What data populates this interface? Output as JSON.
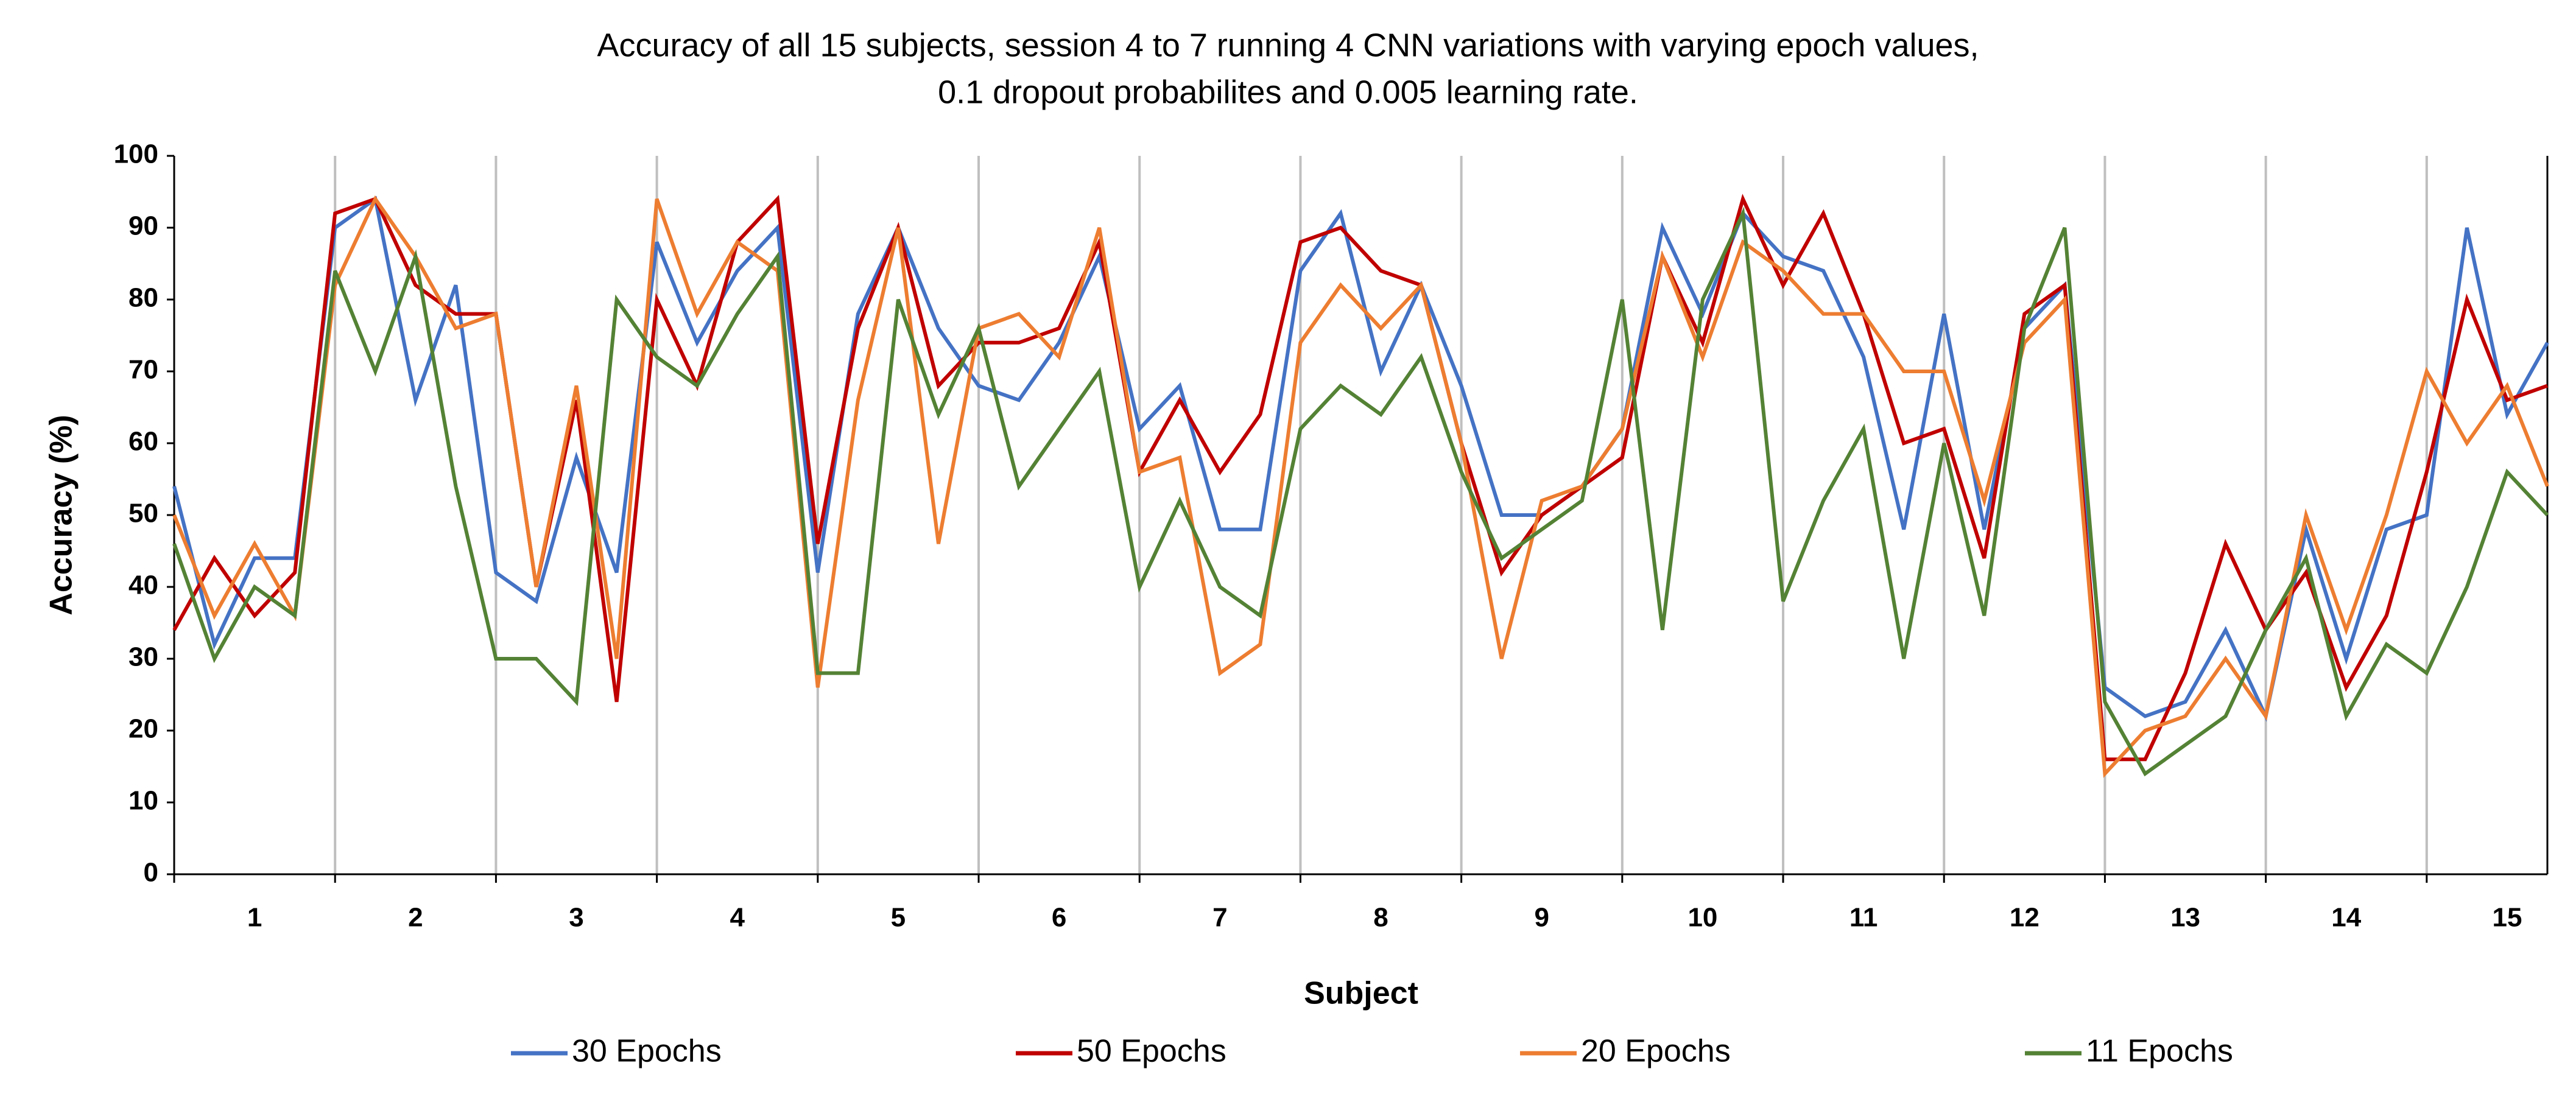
{
  "chart_data": {
    "type": "line",
    "title": [
      "Accuracy of all 15 subjects, session 4 to 7 running 4 CNN variations with varying epoch values,",
      "0.1 dropout probabilites and 0.005 learning rate."
    ],
    "x_label": "Subject",
    "y_label": "Accuracy (%)",
    "categories": [
      "1",
      "2",
      "3",
      "4",
      "5",
      "6",
      "7",
      "8",
      "9",
      "10",
      "11",
      "12",
      "13",
      "14",
      "15"
    ],
    "ylim": [
      0,
      100
    ],
    "yticks": [
      0,
      10,
      20,
      30,
      40,
      50,
      60,
      70,
      80,
      90,
      100
    ],
    "grid": true,
    "legend": "bottom",
    "series": [
      {
        "name": "30 Epochs",
        "color": "#4472c4",
        "values": [
          [
            54,
            32,
            44,
            44
          ],
          [
            90,
            94,
            66,
            82
          ],
          [
            42,
            38,
            58,
            42
          ],
          [
            88,
            74,
            84,
            90
          ],
          [
            42,
            78,
            90,
            76
          ],
          [
            68,
            66,
            74,
            86
          ],
          [
            62,
            68,
            48,
            48
          ],
          [
            84,
            92,
            70,
            82
          ],
          [
            68,
            50,
            50,
            54
          ],
          [
            62,
            90,
            78,
            92
          ],
          [
            86,
            84,
            72,
            48
          ],
          [
            78,
            48,
            76,
            82
          ],
          [
            26,
            22,
            24,
            34
          ],
          [
            22,
            48,
            30,
            48
          ],
          [
            50,
            90,
            64,
            74
          ]
        ]
      },
      {
        "name": "50 Epochs",
        "color": "#c00000",
        "values": [
          [
            34,
            44,
            36,
            42
          ],
          [
            92,
            94,
            82,
            78
          ],
          [
            78,
            40,
            66,
            24
          ],
          [
            80,
            68,
            88,
            94
          ],
          [
            46,
            76,
            90,
            68
          ],
          [
            74,
            74,
            76,
            88
          ],
          [
            56,
            66,
            56,
            64
          ],
          [
            88,
            90,
            84,
            82
          ],
          [
            60,
            42,
            50,
            54
          ],
          [
            58,
            86,
            74,
            94
          ],
          [
            82,
            92,
            78,
            60
          ],
          [
            62,
            44,
            78,
            82
          ],
          [
            16,
            16,
            28,
            46
          ],
          [
            34,
            42,
            26,
            36
          ],
          [
            56,
            80,
            66,
            68
          ]
        ]
      },
      {
        "name": "20 Epochs",
        "color": "#ed7d31",
        "values": [
          [
            50,
            36,
            46,
            36
          ],
          [
            82,
            94,
            86,
            76
          ],
          [
            78,
            40,
            68,
            30
          ],
          [
            94,
            78,
            88,
            84
          ],
          [
            26,
            66,
            90,
            46
          ],
          [
            76,
            78,
            72,
            90
          ],
          [
            56,
            58,
            28,
            32
          ],
          [
            74,
            82,
            76,
            82
          ],
          [
            60,
            30,
            52,
            54
          ],
          [
            62,
            86,
            72,
            88
          ],
          [
            84,
            78,
            78,
            70
          ],
          [
            70,
            52,
            74,
            80
          ],
          [
            14,
            20,
            22,
            30
          ],
          [
            22,
            50,
            34,
            50
          ],
          [
            70,
            60,
            68,
            54
          ]
        ]
      },
      {
        "name": "11 Epochs",
        "color": "#548235",
        "values": [
          [
            46,
            30,
            40,
            36
          ],
          [
            84,
            70,
            86,
            54
          ],
          [
            30,
            30,
            24,
            80
          ],
          [
            72,
            68,
            78,
            86
          ],
          [
            28,
            28,
            80,
            64
          ],
          [
            76,
            54,
            62,
            70
          ],
          [
            40,
            52,
            40,
            36
          ],
          [
            62,
            68,
            64,
            72
          ],
          [
            56,
            44,
            48,
            52
          ],
          [
            80,
            34,
            80,
            92
          ],
          [
            38,
            52,
            62,
            30
          ],
          [
            60,
            36,
            76,
            90
          ],
          [
            24,
            14,
            18,
            22
          ],
          [
            34,
            44,
            22,
            32
          ],
          [
            28,
            40,
            56,
            50
          ]
        ]
      }
    ]
  }
}
